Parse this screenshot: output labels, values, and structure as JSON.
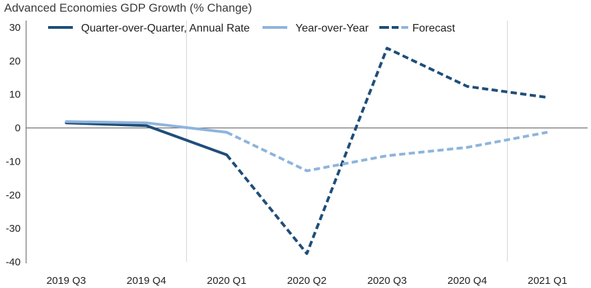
{
  "chart_data": {
    "type": "line",
    "title": "Advanced Economies GDP Growth (% Change)",
    "xlabel": "",
    "ylabel": "",
    "categories": [
      "2019 Q3",
      "2019 Q4",
      "2020 Q1",
      "2020 Q2",
      "2020 Q3",
      "2020 Q4",
      "2021 Q1"
    ],
    "ylim": [
      -40,
      30
    ],
    "yticks": [
      30,
      20,
      10,
      0,
      -10,
      -20,
      -30,
      -40
    ],
    "legend_position": "top",
    "grid": false,
    "period_dividers_after": [
      "2019 Q4",
      "2020 Q4"
    ],
    "series": [
      {
        "name": "Quarter-over-Quarter, Annual Rate",
        "color": "#1f4e79",
        "style": "solid",
        "values": [
          1.5,
          0.7,
          -8.0,
          null,
          null,
          null,
          null
        ]
      },
      {
        "name": "Year-over-Year",
        "color": "#8eb4dc",
        "style": "solid",
        "values": [
          1.9,
          1.5,
          -1.3,
          null,
          null,
          null,
          null
        ]
      },
      {
        "name": "Quarter-over-Quarter forecast",
        "color": "#1f4e79",
        "style": "dashed",
        "values": [
          null,
          null,
          -8.0,
          -37.5,
          23.8,
          12.4,
          9.1
        ]
      },
      {
        "name": "Year-over-Year forecast",
        "color": "#8eb4dc",
        "style": "dashed",
        "values": [
          null,
          null,
          -1.3,
          -12.8,
          -8.3,
          -5.8,
          -1.3
        ]
      }
    ],
    "legend": [
      {
        "label": "Quarter-over-Quarter, Annual Rate",
        "color": "#1f4e79",
        "style": "solid"
      },
      {
        "label": "Year-over-Year",
        "color": "#8eb4dc",
        "style": "solid"
      },
      {
        "label": "Forecast",
        "colors": [
          "#1f4e79",
          "#8eb4dc"
        ],
        "style": "dashed"
      }
    ]
  }
}
